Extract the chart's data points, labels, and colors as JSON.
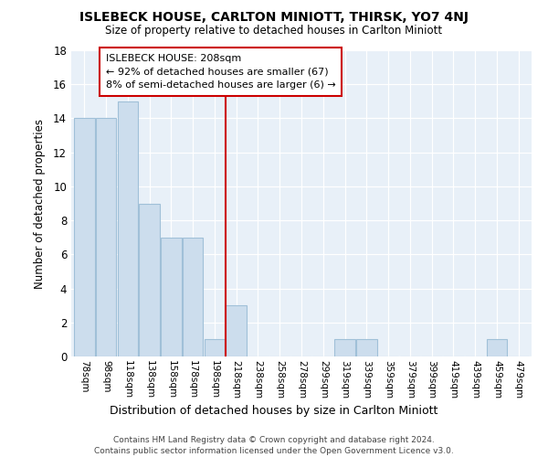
{
  "title": "ISLEBECK HOUSE, CARLTON MINIOTT, THIRSK, YO7 4NJ",
  "subtitle": "Size of property relative to detached houses in Carlton Miniott",
  "xlabel": "Distribution of detached houses by size in Carlton Miniott",
  "ylabel": "Number of detached properties",
  "bar_color": "#ccdded",
  "bar_edge_color": "#a0c0d8",
  "bins": [
    "78sqm",
    "98sqm",
    "118sqm",
    "138sqm",
    "158sqm",
    "178sqm",
    "198sqm",
    "218sqm",
    "238sqm",
    "258sqm",
    "278sqm",
    "299sqm",
    "319sqm",
    "339sqm",
    "359sqm",
    "379sqm",
    "399sqm",
    "419sqm",
    "439sqm",
    "459sqm",
    "479sqm"
  ],
  "values": [
    14,
    14,
    15,
    9,
    7,
    7,
    1,
    3,
    0,
    0,
    0,
    0,
    1,
    1,
    0,
    0,
    0,
    0,
    0,
    1,
    0
  ],
  "red_line_index": 6.5,
  "annotation_title": "ISLEBECK HOUSE: 208sqm",
  "annotation_line1": "← 92% of detached houses are smaller (67)",
  "annotation_line2": "8% of semi-detached houses are larger (6) →",
  "ylim": [
    0,
    18
  ],
  "yticks": [
    0,
    2,
    4,
    6,
    8,
    10,
    12,
    14,
    16,
    18
  ],
  "grid_color": "#d0dce8",
  "background_color": "#e8f0f8",
  "footer1": "Contains HM Land Registry data © Crown copyright and database right 2024.",
  "footer2": "Contains public sector information licensed under the Open Government Licence v3.0."
}
